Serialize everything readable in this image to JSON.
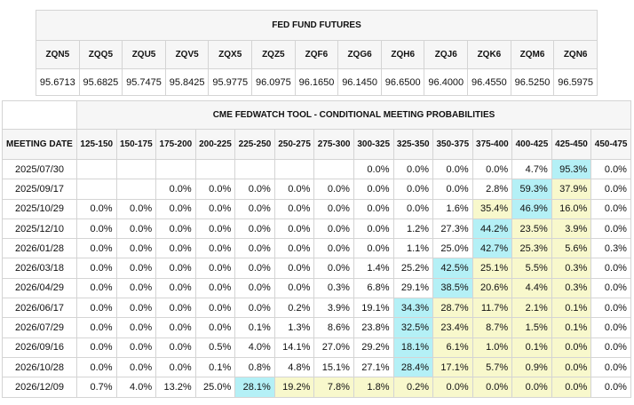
{
  "futures": {
    "title": "FED FUND FUTURES",
    "codes": [
      "ZQN5",
      "ZQQ5",
      "ZQU5",
      "ZQV5",
      "ZQX5",
      "ZQZ5",
      "ZQF6",
      "ZQG6",
      "ZQH6",
      "ZQJ6",
      "ZQK6",
      "ZQM6",
      "ZQN6"
    ],
    "values": [
      "95.6713",
      "95.6825",
      "95.7475",
      "95.8425",
      "95.9775",
      "96.0975",
      "96.1650",
      "96.1450",
      "96.6500",
      "96.4000",
      "96.4550",
      "96.5250",
      "96.5975"
    ]
  },
  "probabilities": {
    "title": "CME FEDWATCH TOOL - CONDITIONAL MEETING PROBABILITIES",
    "meeting_header": "MEETING DATE",
    "ranges": [
      "125-150",
      "150-175",
      "175-200",
      "200-225",
      "225-250",
      "250-275",
      "275-300",
      "300-325",
      "325-350",
      "350-375",
      "375-400",
      "400-425",
      "425-450",
      "450-475"
    ]
  },
  "colors": {
    "highest": "#b4f0f6",
    "elevated": "#f8f8cc",
    "header_bg": "#f6f6f6",
    "grid": "#d4d4d4"
  },
  "chart_data": {
    "type": "table",
    "title": "CME FEDWATCH TOOL - CONDITIONAL MEETING PROBABILITIES",
    "columns": [
      "125-150",
      "150-175",
      "175-200",
      "200-225",
      "225-250",
      "250-275",
      "275-300",
      "300-325",
      "325-350",
      "350-375",
      "375-400",
      "400-425",
      "425-450",
      "450-475"
    ],
    "rows": [
      {
        "date": "2025/07/30",
        "values": [
          "",
          "",
          "",
          "",
          "",
          "",
          "",
          "0.0%",
          "0.0%",
          "0.0%",
          "0.0%",
          "4.7%",
          "95.3%",
          "0.0%"
        ],
        "hi": [
          12
        ],
        "mid": []
      },
      {
        "date": "2025/09/17",
        "values": [
          "",
          "",
          "0.0%",
          "0.0%",
          "0.0%",
          "0.0%",
          "0.0%",
          "0.0%",
          "0.0%",
          "0.0%",
          "2.8%",
          "59.3%",
          "37.9%",
          "0.0%"
        ],
        "hi": [
          11
        ],
        "mid": [
          12
        ]
      },
      {
        "date": "2025/10/29",
        "values": [
          "0.0%",
          "0.0%",
          "0.0%",
          "0.0%",
          "0.0%",
          "0.0%",
          "0.0%",
          "0.0%",
          "0.0%",
          "1.6%",
          "35.4%",
          "46.9%",
          "16.0%",
          "0.0%"
        ],
        "hi": [
          11
        ],
        "mid": [
          10,
          12
        ]
      },
      {
        "date": "2025/12/10",
        "values": [
          "0.0%",
          "0.0%",
          "0.0%",
          "0.0%",
          "0.0%",
          "0.0%",
          "0.0%",
          "0.0%",
          "1.2%",
          "27.3%",
          "44.2%",
          "23.5%",
          "3.9%",
          "0.0%"
        ],
        "hi": [
          10
        ],
        "mid": [
          11,
          12
        ]
      },
      {
        "date": "2026/01/28",
        "values": [
          "0.0%",
          "0.0%",
          "0.0%",
          "0.0%",
          "0.0%",
          "0.0%",
          "0.0%",
          "0.0%",
          "1.1%",
          "25.0%",
          "42.7%",
          "25.3%",
          "5.6%",
          "0.3%"
        ],
        "hi": [
          10
        ],
        "mid": [
          11,
          12
        ]
      },
      {
        "date": "2026/03/18",
        "values": [
          "0.0%",
          "0.0%",
          "0.0%",
          "0.0%",
          "0.0%",
          "0.0%",
          "0.0%",
          "1.4%",
          "25.2%",
          "42.5%",
          "25.1%",
          "5.5%",
          "0.3%",
          "0.0%"
        ],
        "hi": [
          9
        ],
        "mid": [
          10,
          11,
          12
        ]
      },
      {
        "date": "2026/04/29",
        "values": [
          "0.0%",
          "0.0%",
          "0.0%",
          "0.0%",
          "0.0%",
          "0.0%",
          "0.3%",
          "6.8%",
          "29.1%",
          "38.5%",
          "20.6%",
          "4.4%",
          "0.3%",
          "0.0%"
        ],
        "hi": [
          9
        ],
        "mid": [
          10,
          11,
          12
        ]
      },
      {
        "date": "2026/06/17",
        "values": [
          "0.0%",
          "0.0%",
          "0.0%",
          "0.0%",
          "0.0%",
          "0.2%",
          "3.9%",
          "19.1%",
          "34.3%",
          "28.7%",
          "11.7%",
          "2.1%",
          "0.1%",
          "0.0%"
        ],
        "hi": [
          8
        ],
        "mid": [
          9,
          10,
          11,
          12
        ]
      },
      {
        "date": "2026/07/29",
        "values": [
          "0.0%",
          "0.0%",
          "0.0%",
          "0.0%",
          "0.1%",
          "1.3%",
          "8.6%",
          "23.8%",
          "32.5%",
          "23.4%",
          "8.7%",
          "1.5%",
          "0.1%",
          "0.0%"
        ],
        "hi": [
          8
        ],
        "mid": [
          9,
          10,
          11,
          12
        ]
      },
      {
        "date": "2026/09/16",
        "values": [
          "0.0%",
          "0.0%",
          "0.0%",
          "0.5%",
          "4.0%",
          "14.1%",
          "27.0%",
          "29.2%",
          "18.1%",
          "6.1%",
          "1.0%",
          "0.1%",
          "0.0%",
          "0.0%"
        ],
        "hi": [
          8
        ],
        "mid": [
          9,
          10,
          11,
          12
        ]
      },
      {
        "date": "2026/10/28",
        "values": [
          "0.0%",
          "0.0%",
          "0.0%",
          "0.1%",
          "0.8%",
          "4.8%",
          "15.1%",
          "27.1%",
          "28.4%",
          "17.1%",
          "5.7%",
          "0.9%",
          "0.0%",
          "0.0%"
        ],
        "hi": [
          8
        ],
        "mid": [
          9,
          10,
          11,
          12
        ]
      },
      {
        "date": "2026/12/09",
        "values": [
          "0.7%",
          "4.0%",
          "13.2%",
          "25.0%",
          "28.1%",
          "19.2%",
          "7.8%",
          "1.8%",
          "0.2%",
          "0.0%",
          "0.0%",
          "0.0%",
          "0.0%",
          "0.0%"
        ],
        "hi": [
          4
        ],
        "mid": [
          5,
          6,
          7,
          8,
          9,
          10,
          11,
          12
        ]
      }
    ]
  }
}
